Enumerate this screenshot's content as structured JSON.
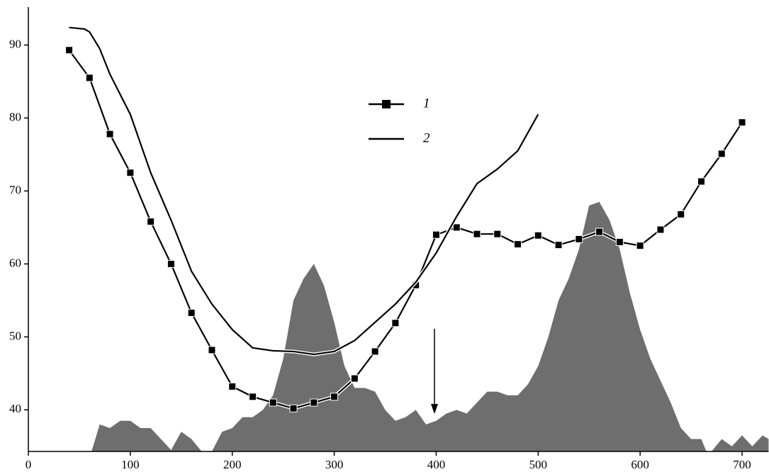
{
  "chart_data": {
    "type": "line",
    "xlim": [
      0,
      726
    ],
    "ylim": [
      34.3,
      95.2
    ],
    "xticks": [
      0,
      100,
      200,
      300,
      400,
      500,
      600,
      700
    ],
    "yticks": [
      40,
      50,
      60,
      70,
      80,
      90
    ],
    "legend": "upper center",
    "area": {
      "color": "#6e6e6e",
      "x": [
        62,
        70,
        80,
        90,
        100,
        110,
        120,
        130,
        140,
        150,
        160,
        170,
        180,
        190,
        200,
        210,
        220,
        230,
        240,
        250,
        260,
        270,
        280,
        290,
        300,
        310,
        320,
        330,
        340,
        350,
        360,
        370,
        380,
        390,
        400,
        410,
        420,
        430,
        440,
        450,
        460,
        470,
        480,
        490,
        500,
        510,
        520,
        530,
        540,
        550,
        560,
        570,
        580,
        590,
        600,
        610,
        620,
        630,
        640,
        650,
        660,
        665,
        670,
        680,
        690,
        700,
        710,
        720,
        726
      ],
      "values": [
        34.3,
        38,
        37.5,
        38.5,
        38.5,
        37.5,
        37.5,
        36,
        34.5,
        37,
        36,
        34.3,
        34.3,
        37,
        37.5,
        39,
        39,
        40,
        42,
        47,
        55,
        58,
        60,
        57,
        52,
        46,
        43,
        43,
        42.5,
        40,
        38.5,
        39,
        40,
        38,
        38.5,
        39.5,
        40,
        39.5,
        41,
        42.5,
        42.5,
        42,
        42,
        43.5,
        46,
        50,
        55,
        58,
        62,
        68,
        68.5,
        66,
        62,
        56,
        51,
        47,
        44,
        41,
        37.5,
        36,
        36,
        34.3,
        34.3,
        36,
        35,
        36.5,
        35,
        36.5,
        36
      ]
    },
    "series": [
      {
        "name": "1",
        "color": "#000000",
        "marker": "square",
        "x": [
          40,
          60,
          80,
          100,
          120,
          140,
          160,
          180,
          200,
          220,
          240,
          260,
          280,
          300,
          320,
          340,
          360,
          380,
          400,
          420,
          440,
          460,
          480,
          500,
          520,
          540,
          560,
          580,
          600,
          620,
          640,
          660,
          680,
          700
        ],
        "values": [
          89.3,
          85.5,
          77.8,
          72.5,
          65.8,
          60,
          53.3,
          48.2,
          43.2,
          41.8,
          41,
          40.2,
          41,
          41.8,
          44.3,
          48,
          51.9,
          57.1,
          64,
          65,
          64.1,
          64.1,
          62.7,
          63.9,
          62.6,
          63.4,
          64.4,
          63,
          62.5,
          64.7,
          66.8,
          71.3,
          75.1,
          79.4
        ]
      },
      {
        "name": "2",
        "color": "#000000",
        "marker": "none",
        "x": [
          40,
          55,
          60,
          70,
          80,
          100,
          120,
          140,
          160,
          180,
          200,
          220,
          240,
          260,
          280,
          300,
          320,
          340,
          360,
          380,
          400,
          420,
          440,
          460,
          480,
          500
        ],
        "values": [
          92.4,
          92.2,
          91.8,
          89.5,
          86,
          80.5,
          72.5,
          66,
          59,
          54.5,
          51,
          48.5,
          48.1,
          48,
          47.6,
          48,
          49.5,
          52,
          54.5,
          57.5,
          61.5,
          66.5,
          71,
          73,
          75.5,
          80.5
        ]
      }
    ]
  }
}
